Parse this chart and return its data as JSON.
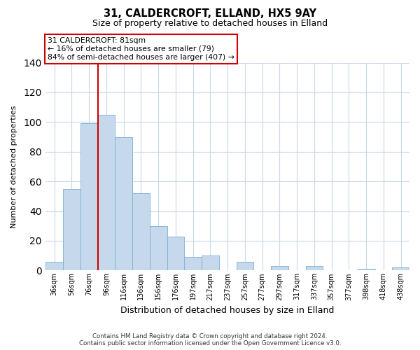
{
  "title": "31, CALDERCROFT, ELLAND, HX5 9AY",
  "subtitle": "Size of property relative to detached houses in Elland",
  "xlabel": "Distribution of detached houses by size in Elland",
  "ylabel": "Number of detached properties",
  "bar_labels": [
    "36sqm",
    "56sqm",
    "76sqm",
    "96sqm",
    "116sqm",
    "136sqm",
    "156sqm",
    "176sqm",
    "197sqm",
    "217sqm",
    "237sqm",
    "257sqm",
    "277sqm",
    "297sqm",
    "317sqm",
    "337sqm",
    "357sqm",
    "377sqm",
    "398sqm",
    "418sqm",
    "438sqm"
  ],
  "bar_values": [
    6,
    55,
    99,
    105,
    90,
    52,
    30,
    23,
    9,
    10,
    0,
    6,
    0,
    3,
    0,
    3,
    0,
    0,
    1,
    0,
    2
  ],
  "bar_color": "#c6d9ec",
  "bar_edge_color": "#7bafd4",
  "vline_color": "#cc0000",
  "ylim": [
    0,
    140
  ],
  "yticks": [
    0,
    20,
    40,
    60,
    80,
    100,
    120,
    140
  ],
  "annotation_title": "31 CALDERCROFT: 81sqm",
  "annotation_line1": "← 16% of detached houses are smaller (79)",
  "annotation_line2": "84% of semi-detached houses are larger (407) →",
  "annotation_box_color": "#ffffff",
  "annotation_box_edge": "#cc0000",
  "footer1": "Contains HM Land Registry data © Crown copyright and database right 2024.",
  "footer2": "Contains public sector information licensed under the Open Government Licence v3.0.",
  "background_color": "#ffffff",
  "grid_color": "#c8d8e8"
}
